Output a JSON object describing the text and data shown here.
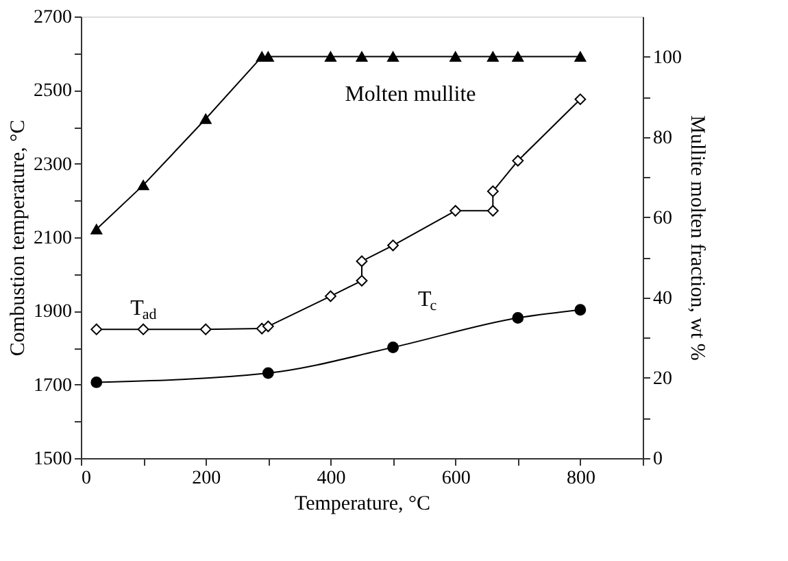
{
  "chart_data": {
    "type": "line",
    "xlabel": "Temperature, °C",
    "ylabel": "Combustion temperature, °C",
    "y2label": "Mullite molten fraction, wt %",
    "xlim": [
      0,
      900
    ],
    "ylim": [
      1500,
      2700
    ],
    "y2lim": [
      0,
      110
    ],
    "xticks": [
      0,
      {
        "value": 100,
        "label": null
      },
      200,
      {
        "value": 300,
        "label": null
      },
      400,
      {
        "value": 500,
        "label": null
      },
      600,
      {
        "value": 700,
        "label": null
      },
      800,
      {
        "value": 900,
        "label": null
      }
    ],
    "yticks": [
      1500,
      {
        "value": 1600,
        "label": null
      },
      1700,
      {
        "value": 1800,
        "label": null
      },
      1900,
      {
        "value": 2000,
        "label": null
      },
      2100,
      {
        "value": 2200,
        "label": null
      },
      2300,
      {
        "value": 2400,
        "label": null
      },
      2500,
      {
        "value": 2600,
        "label": null
      },
      2700
    ],
    "y2ticks": [
      0,
      {
        "value": 10,
        "label": null
      },
      20,
      {
        "value": 30,
        "label": null
      },
      40,
      {
        "value": 50,
        "label": null
      },
      60,
      {
        "value": 70,
        "label": null
      },
      80,
      {
        "value": 90,
        "label": null
      },
      100
    ],
    "line_style": "solid",
    "series": [
      {
        "color": "#000000",
        "marker": "triangle",
        "axis": "y2",
        "x": [
          25,
          100,
          200,
          290,
          300,
          400,
          450,
          500,
          600,
          660,
          700,
          800
        ],
        "values": [
          57,
          68,
          84.5,
          100,
          100,
          100,
          100,
          100,
          100,
          100,
          100,
          100
        ]
      },
      {
        "color": "#000000",
        "marker": "diamond",
        "x": [
          25,
          100,
          200,
          290,
          300,
          400,
          450,
          450,
          500,
          600,
          660,
          660,
          700,
          800
        ],
        "values": [
          1850,
          1850,
          1850,
          1852,
          1858,
          1940,
          1982,
          2035,
          2078,
          2172,
          2172,
          2225,
          2308,
          2475
        ]
      },
      {
        "color": "#000000",
        "marker": "circle",
        "x": [
          25,
          300,
          500,
          700,
          800
        ],
        "values": [
          1706,
          1731,
          1801,
          1881,
          1903
        ]
      }
    ],
    "annotations": [
      "Molten mullite",
      "T$_{ad}$",
      "T$_{c}$"
    ]
  }
}
